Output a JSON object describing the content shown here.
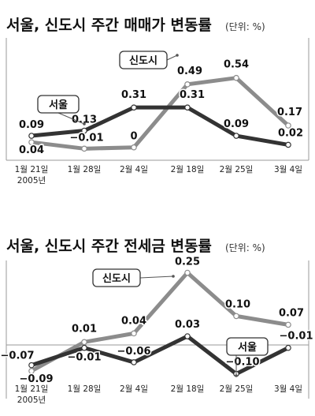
{
  "chart_data": [
    {
      "type": "line",
      "title": "서울, 신도시 주간 매매가 변동률",
      "unit": "(단위: %)",
      "categories": [
        "1월 21일",
        "1월 28일",
        "2월 4일",
        "2월 18일",
        "2월 25일",
        "3월 4일"
      ],
      "year_label": "2005년",
      "series": [
        {
          "name": "서울",
          "values": [
            0.09,
            0.13,
            0.31,
            0.31,
            0.09,
            0.02
          ],
          "labels": [
            "0.09",
            "0.13",
            "0.31",
            "0.31",
            "0.09",
            "0.02"
          ],
          "color": "#333333"
        },
        {
          "name": "신도시",
          "values": [
            0.04,
            -0.01,
            0,
            0.49,
            0.54,
            0.17
          ],
          "labels": [
            "0.04",
            "−0.01",
            "0",
            "0.49",
            "0.54",
            "0.17"
          ],
          "color": "#8c8c8c"
        }
      ]
    },
    {
      "type": "line",
      "title": "서울, 신도시 주간 전세금 변동률",
      "unit": "(단위: %)",
      "categories": [
        "1월 21일",
        "1월 28일",
        "2월 4일",
        "2월 18일",
        "2월 25일",
        "3월 4일"
      ],
      "year_label": "2005년",
      "series": [
        {
          "name": "서울",
          "values": [
            -0.07,
            -0.01,
            -0.06,
            0.03,
            -0.1,
            -0.01
          ],
          "labels": [
            "−0.07",
            "−0.01",
            "−0.06",
            "0.03",
            "−0.10",
            "−0.01"
          ],
          "color": "#333333"
        },
        {
          "name": "신도시",
          "values": [
            -0.09,
            0.01,
            0.04,
            0.25,
            0.1,
            0.07
          ],
          "labels": [
            "−0.09",
            "0.01",
            "0.04",
            "0.25",
            "0.10",
            "0.07"
          ],
          "color": "#8c8c8c"
        }
      ]
    }
  ]
}
